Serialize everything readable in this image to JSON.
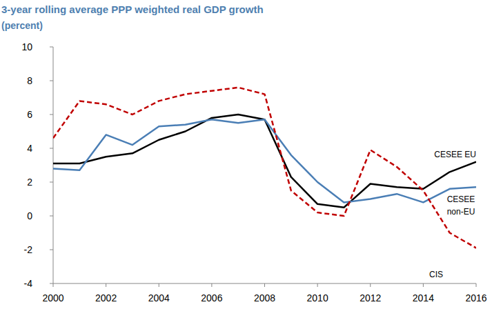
{
  "chart_data": {
    "type": "line",
    "title": "3-year rolling average PPP weighted real GDP growth",
    "subtitle": "(percent)",
    "x": [
      2000,
      2001,
      2002,
      2003,
      2004,
      2005,
      2006,
      2007,
      2008,
      2009,
      2010,
      2011,
      2012,
      2013,
      2014,
      2015,
      2016
    ],
    "series": [
      {
        "name": "CESEE EU",
        "color": "#000000",
        "line_style": "solid",
        "values": [
          3.1,
          3.1,
          3.5,
          3.7,
          4.5,
          5.0,
          5.8,
          6.0,
          5.7,
          2.3,
          0.7,
          0.5,
          1.9,
          1.7,
          1.6,
          2.6,
          3.2
        ]
      },
      {
        "name": "CESEE non-EU",
        "color": "#4a7eb5",
        "line_style": "solid",
        "values": [
          2.8,
          2.7,
          4.8,
          4.2,
          5.3,
          5.4,
          5.7,
          5.5,
          5.7,
          3.6,
          2.0,
          0.8,
          1.0,
          1.3,
          0.8,
          1.6,
          1.7
        ]
      },
      {
        "name": "CIS",
        "color": "#c00000",
        "line_style": "dashed",
        "values": [
          4.6,
          6.8,
          6.6,
          6.0,
          6.8,
          7.2,
          7.4,
          7.6,
          7.2,
          1.5,
          0.2,
          0.0,
          3.9,
          2.9,
          1.5,
          -1.0,
          -1.9
        ]
      }
    ],
    "xlim": [
      2000,
      2016
    ],
    "xticks": [
      2000,
      2002,
      2004,
      2006,
      2008,
      2010,
      2012,
      2014,
      2016
    ],
    "ylim": [
      -4,
      10
    ],
    "yticks": [
      -4,
      -2,
      0,
      2,
      4,
      6,
      8,
      10
    ],
    "grid": false
  }
}
